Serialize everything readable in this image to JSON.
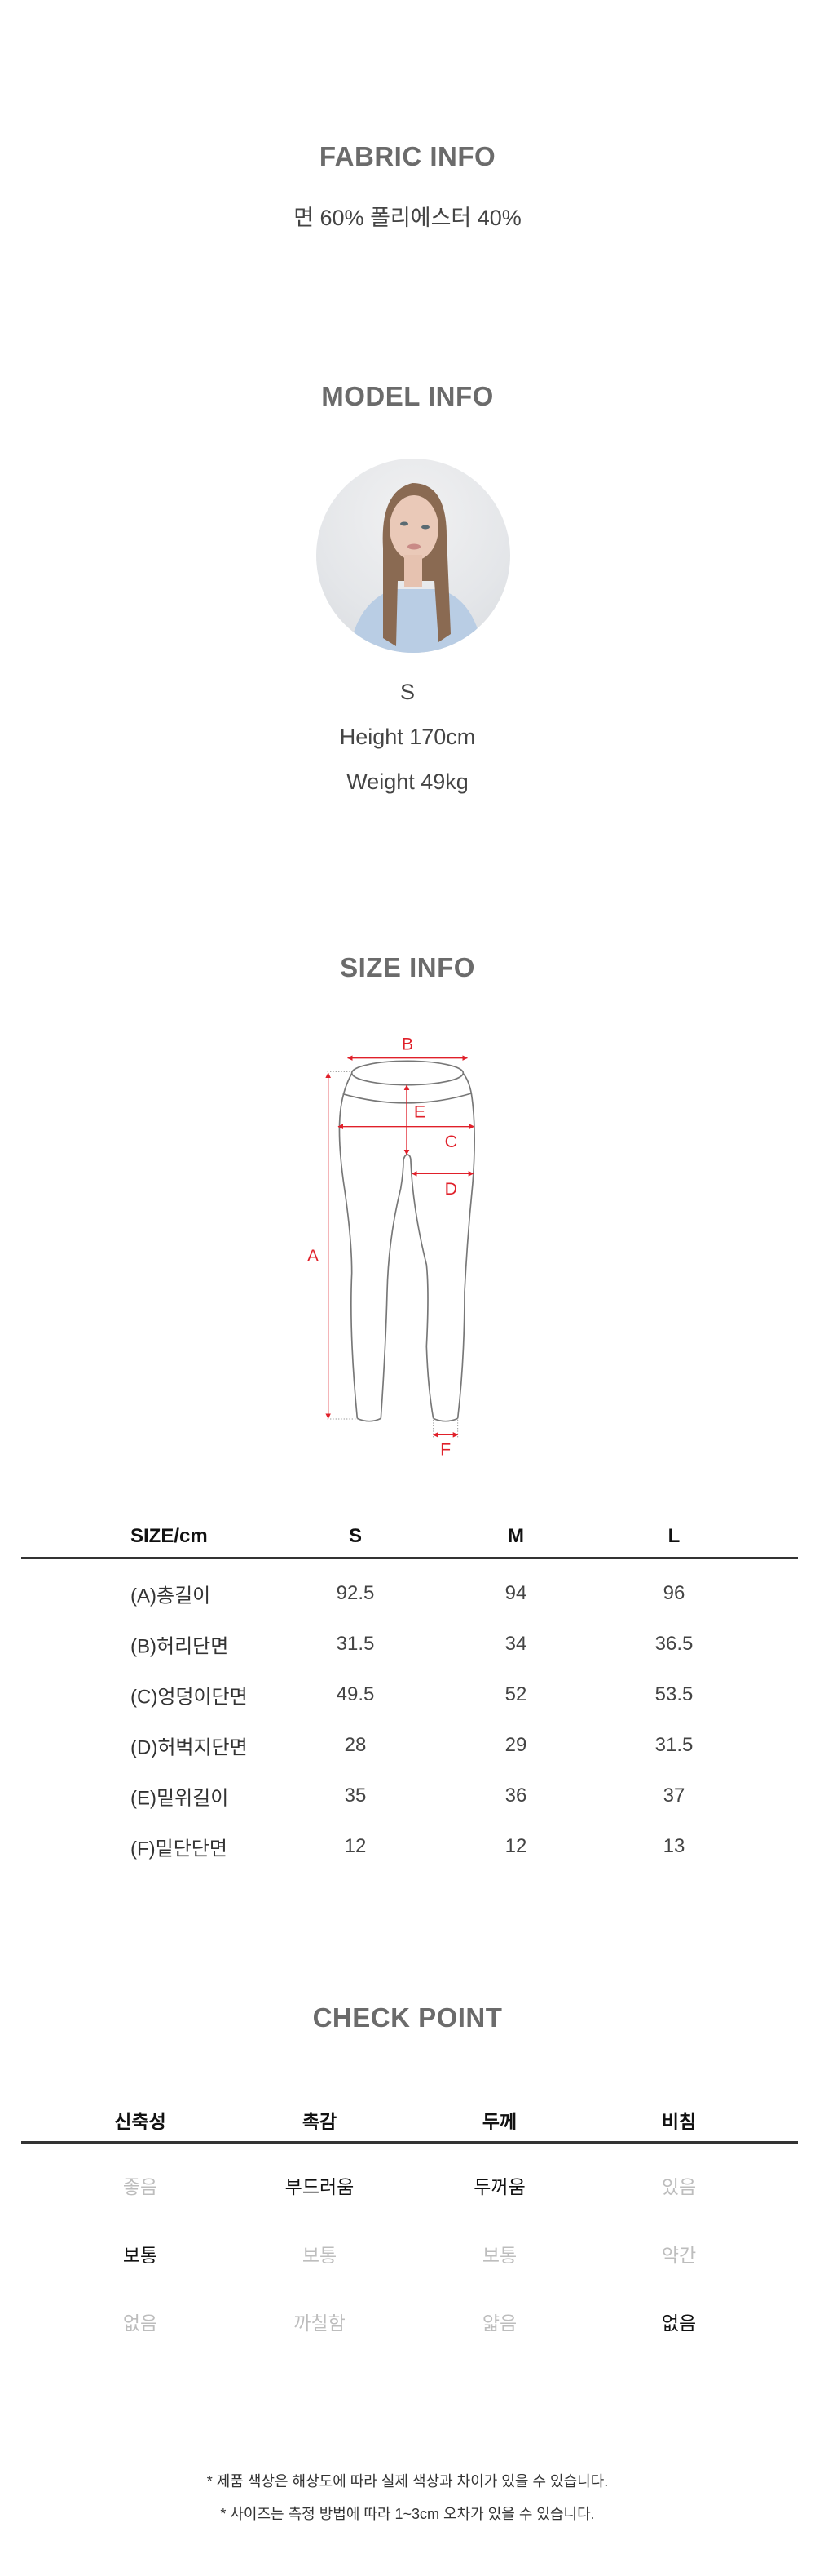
{
  "fabric": {
    "title": "FABRIC INFO",
    "content": "면 60%  폴리에스터 40%"
  },
  "model": {
    "title": "MODEL INFO",
    "size": "S",
    "height": "Height 170cm",
    "weight": "Weight 49kg"
  },
  "size_info": {
    "title": "SIZE INFO",
    "diagram_labels": {
      "a": "A",
      "b": "B",
      "c": "C",
      "d": "D",
      "e": "E",
      "f": "F"
    },
    "accent_color": "#e0202a",
    "headers": [
      "SIZE/cm",
      "S",
      "M",
      "L"
    ],
    "rows": [
      {
        "label": "(A)총길이",
        "values": [
          "92.5",
          "94",
          "96"
        ]
      },
      {
        "label": "(B)허리단면",
        "values": [
          "31.5",
          "34",
          "36.5"
        ]
      },
      {
        "label": "(C)엉덩이단면",
        "values": [
          "49.5",
          "52",
          "53.5"
        ]
      },
      {
        "label": "(D)허벅지단면",
        "values": [
          "28",
          "29",
          "31.5"
        ]
      },
      {
        "label": "(E)밑위길이",
        "values": [
          "35",
          "36",
          "37"
        ]
      },
      {
        "label": "(F)밑단단면",
        "values": [
          "12",
          "12",
          "13"
        ]
      }
    ]
  },
  "check_point": {
    "title": "CHECK POINT",
    "headers": [
      "신축성",
      "촉감",
      "두께",
      "비침"
    ],
    "rows": [
      [
        {
          "text": "좋음",
          "selected": false
        },
        {
          "text": "부드러움",
          "selected": true
        },
        {
          "text": "두꺼움",
          "selected": true
        },
        {
          "text": "있음",
          "selected": false
        }
      ],
      [
        {
          "text": "보통",
          "selected": true
        },
        {
          "text": "보통",
          "selected": false
        },
        {
          "text": "보통",
          "selected": false
        },
        {
          "text": "약간",
          "selected": false
        }
      ],
      [
        {
          "text": "없음",
          "selected": false
        },
        {
          "text": "까칠함",
          "selected": false
        },
        {
          "text": "얇음",
          "selected": false
        },
        {
          "text": "없음",
          "selected": true
        }
      ]
    ]
  },
  "notes": [
    "* 제품 색상은 해상도에 따라 실제 색상과 차이가 있을 수 있습니다.",
    "* 사이즈는 측정 방법에 따라 1~3cm 오차가 있을 수 있습니다."
  ]
}
